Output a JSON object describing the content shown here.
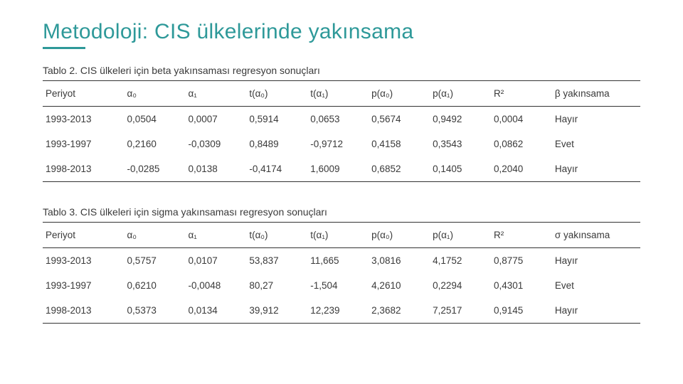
{
  "title": "Metodoloji: CIS ülkelerinde yakınsama",
  "title_color": "#2e9999",
  "accent_color": "#2e9999",
  "font_family": "Segoe UI",
  "background_color": "#ffffff",
  "text_color": "#3a3a3a",
  "table2": {
    "caption": "Tablo 2. CIS ülkeleri için beta yakınsaması regresyon sonuçları",
    "columns": [
      "Periyot",
      "α₀",
      "α₁",
      "t(α₀)",
      "t(α₁)",
      "p(α₀)",
      "p(α₁)",
      "R²",
      "β yakınsama"
    ],
    "rows": [
      [
        "1993-2013",
        "0,0504",
        "0,0007",
        "0,5914",
        "0,0653",
        "0,5674",
        "0,9492",
        "0,0004",
        "Hayır"
      ],
      [
        "1993-1997",
        "0,2160",
        "-0,0309",
        "0,8489",
        "-0,9712",
        "0,4158",
        "0,3543",
        "0,0862",
        "Evet"
      ],
      [
        "1998-2013",
        "-0,0285",
        "0,0138",
        "-0,4174",
        "1,6009",
        "0,6852",
        "0,1405",
        "0,2040",
        "Hayır"
      ]
    ],
    "border_color": "#333333",
    "header_fontsize": 13.5,
    "cell_fontsize": 13.5,
    "row_padding": 10
  },
  "table3": {
    "caption": "Tablo 3. CIS ülkeleri için sigma yakınsaması regresyon sonuçları",
    "columns": [
      "Periyot",
      "α₀",
      "α₁",
      "t(α₀)",
      "t(α₁)",
      "p(α₀)",
      "p(α₁)",
      "R²",
      "σ yakınsama"
    ],
    "rows": [
      [
        "1993-2013",
        "0,5757",
        "0,0107",
        "53,837",
        "11,665",
        "3,0816",
        "4,1752",
        "0,8775",
        "Hayır"
      ],
      [
        "1993-1997",
        "0,6210",
        "-0,0048",
        "80,27",
        "-1,504",
        "4,2610",
        "0,2294",
        "0,4301",
        "Evet"
      ],
      [
        "1998-2013",
        "0,5373",
        "0,0134",
        "39,912",
        "12,239",
        "2,3682",
        "7,2517",
        "0,9145",
        "Hayır"
      ]
    ],
    "border_color": "#333333",
    "header_fontsize": 13.5,
    "cell_fontsize": 13.5,
    "row_padding": 10
  }
}
